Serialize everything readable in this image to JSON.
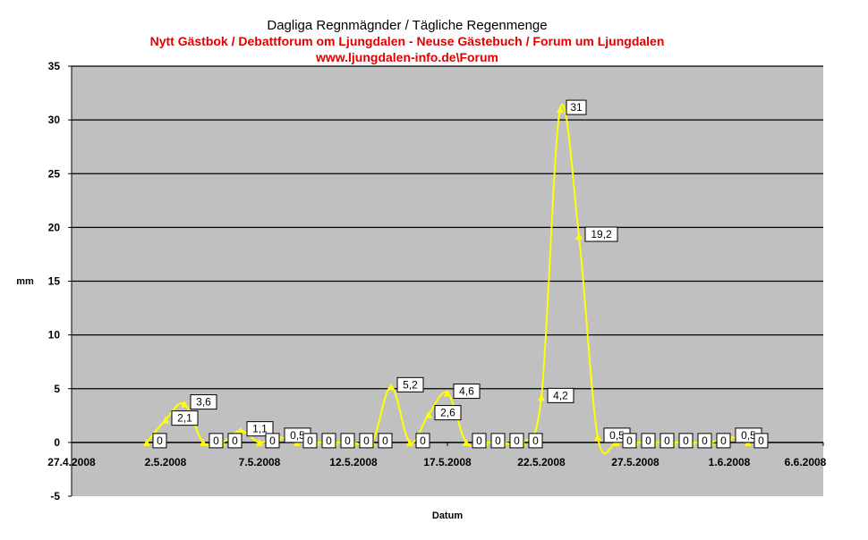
{
  "chart_data": {
    "type": "line",
    "title": "Dagliga Regnmägnder  / Tägliche Regenmenge",
    "subtitle": "Nytt Gästbok / Debattforum om Ljungdalen - Neuse Gästebuch / Forum um Ljungdalen",
    "subtitle2": "www.ljungdalen-info.de\\Forum",
    "xlabel": "Datum",
    "ylabel": "mm",
    "ylim": [
      -5,
      35
    ],
    "y_ticks": [
      "-5",
      "0",
      "5",
      "10",
      "15",
      "20",
      "25",
      "30",
      "35"
    ],
    "x_tick_labels": [
      "27.4.2008",
      "2.5.2008",
      "7.5.2008",
      "12.5.2008",
      "17.5.2008",
      "22.5.2008",
      "27.5.2008",
      "1.6.2008",
      "6.6.2008"
    ],
    "x_range_days": [
      0,
      40
    ],
    "grid": true,
    "background": "#c0c0c0",
    "line_color": "#ffff00",
    "series": [
      {
        "points": [
          {
            "day": 4,
            "y": 0,
            "label": "0"
          },
          {
            "day": 5,
            "y": 2.1,
            "label": "2,1"
          },
          {
            "day": 6,
            "y": 3.6,
            "label": "3,6"
          },
          {
            "day": 7,
            "y": 0,
            "label": "0"
          },
          {
            "day": 8,
            "y": 0,
            "label": "0"
          },
          {
            "day": 9,
            "y": 1.1,
            "label": "1,1"
          },
          {
            "day": 10,
            "y": 0,
            "label": "0"
          },
          {
            "day": 11,
            "y": 0.5,
            "label": "0,5"
          },
          {
            "day": 12,
            "y": 0,
            "label": "0"
          },
          {
            "day": 13,
            "y": 0,
            "label": "0"
          },
          {
            "day": 14,
            "y": 0,
            "label": "0"
          },
          {
            "day": 15,
            "y": 0,
            "label": "0"
          },
          {
            "day": 16,
            "y": 0,
            "label": "0"
          },
          {
            "day": 17,
            "y": 5.2,
            "label": "5,2"
          },
          {
            "day": 18,
            "y": 0,
            "label": "0"
          },
          {
            "day": 19,
            "y": 2.6,
            "label": "2,6"
          },
          {
            "day": 20,
            "y": 4.6,
            "label": "4,6"
          },
          {
            "day": 21,
            "y": 0,
            "label": "0"
          },
          {
            "day": 22,
            "y": 0,
            "label": "0"
          },
          {
            "day": 23,
            "y": 0,
            "label": "0"
          },
          {
            "day": 24,
            "y": 0,
            "label": "0"
          },
          {
            "day": 25,
            "y": 4.2,
            "label": "4,2"
          },
          {
            "day": 26,
            "y": 31,
            "label": "31"
          },
          {
            "day": 27,
            "y": 19.2,
            "label": "19,2"
          },
          {
            "day": 28,
            "y": 0.5,
            "label": "0,5"
          },
          {
            "day": 29,
            "y": 0,
            "label": "0"
          },
          {
            "day": 30,
            "y": 0,
            "label": "0"
          },
          {
            "day": 31,
            "y": 0,
            "label": "0"
          },
          {
            "day": 32,
            "y": 0,
            "label": "0"
          },
          {
            "day": 33,
            "y": 0,
            "label": "0"
          },
          {
            "day": 34,
            "y": 0,
            "label": "0"
          },
          {
            "day": 35,
            "y": 0.5,
            "label": "0,5"
          },
          {
            "day": 36,
            "y": 0,
            "label": "0"
          }
        ]
      }
    ]
  }
}
